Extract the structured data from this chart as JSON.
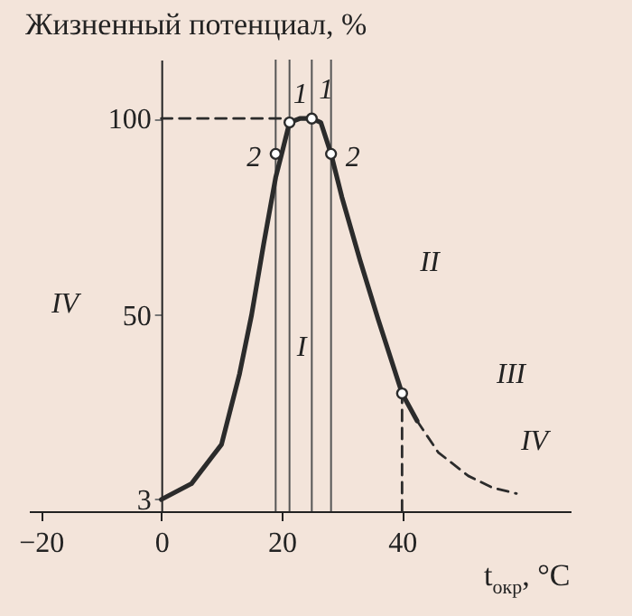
{
  "chart_data": {
    "type": "line",
    "ylabel": "Жизненный потенциал, %",
    "xlabel": "t$_{окр}$, °C",
    "xlim": [
      -22,
      68
    ],
    "ylim": [
      0,
      115
    ],
    "xticks": [
      -20,
      0,
      20,
      40
    ],
    "yticks": [
      3,
      50,
      100
    ],
    "grid": false,
    "series": [
      {
        "color": "#2b2b2b",
        "line_style": "solid",
        "x": [
          0,
          5,
          10,
          13,
          15,
          17,
          19,
          20,
          21.3,
          23,
          25,
          26.5,
          28.2,
          30,
          33,
          36,
          40,
          42.5
        ],
        "values": [
          3,
          7,
          17,
          35,
          50,
          68,
          85,
          91,
          99,
          100,
          100,
          99,
          91,
          80,
          64,
          49,
          30,
          23
        ]
      },
      {
        "color": "#2b2b2b",
        "line_style": "dashed",
        "x": [
          42.5,
          46,
          51,
          55,
          59
        ],
        "values": [
          23,
          15,
          9,
          6,
          4.5
        ]
      },
      {
        "type": "line",
        "color": "#2b2b2b",
        "line_style": "dashed",
        "x": [
          0,
          21.3
        ],
        "values": [
          100,
          100
        ]
      },
      {
        "type": "line",
        "color": "#2b2b2b",
        "line_style": "dashed",
        "x": [
          40,
          40
        ],
        "values": [
          0,
          30
        ]
      },
      {
        "type": "scatter",
        "color": "#2b2b2b",
        "marker": "circle",
        "x": [
          19,
          21.3,
          25,
          28.2,
          40
        ],
        "values": [
          91,
          99,
          100,
          91,
          30
        ]
      }
    ],
    "ref_lines": [
      {
        "axis": "x",
        "value": 19,
        "color": "#555555"
      },
      {
        "axis": "x",
        "value": 21.3,
        "color": "#555555"
      },
      {
        "axis": "x",
        "value": 25,
        "color": "#555555"
      },
      {
        "axis": "x",
        "value": 28.2,
        "color": "#555555"
      }
    ],
    "annotations": [
      {
        "text": "1",
        "x": 21.3,
        "y": 99
      },
      {
        "text": "1",
        "x": 25,
        "y": 100
      },
      {
        "text": "2",
        "x": 19,
        "y": 91
      },
      {
        "text": "2",
        "x": 28.2,
        "y": 91
      },
      "I",
      "II",
      "III",
      "IV",
      "IV"
    ]
  }
}
